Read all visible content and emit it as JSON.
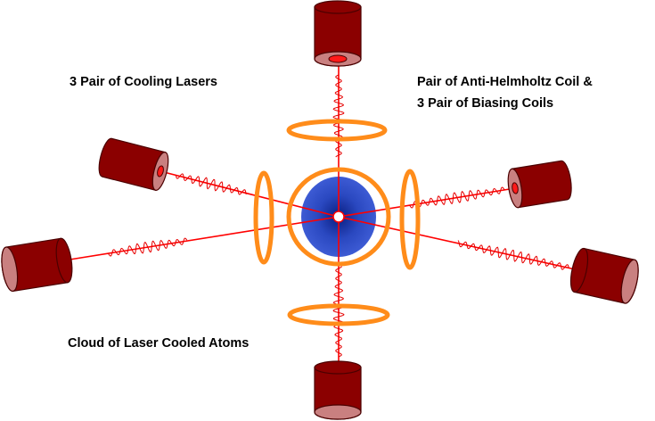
{
  "labels": {
    "cooling_lasers": "3 Pair of Cooling Lasers",
    "coils_line1": "Pair of Anti-Helmholtz Coil &",
    "coils_line2": "3 Pair of Biasing Coils",
    "cloud": "Cloud of Laser Cooled Atoms"
  },
  "colors": {
    "laser_beam": "#ff0000",
    "wave": "#e60000",
    "cylinder_body": "#8b0000",
    "cylinder_cap": "#c98080",
    "aperture": "#ff1a1a",
    "coil": "#ff8c1a",
    "atom_cloud": "#1f3fb4",
    "atom_cloud_dark": "#0a1e80"
  },
  "beam_count": 6
}
